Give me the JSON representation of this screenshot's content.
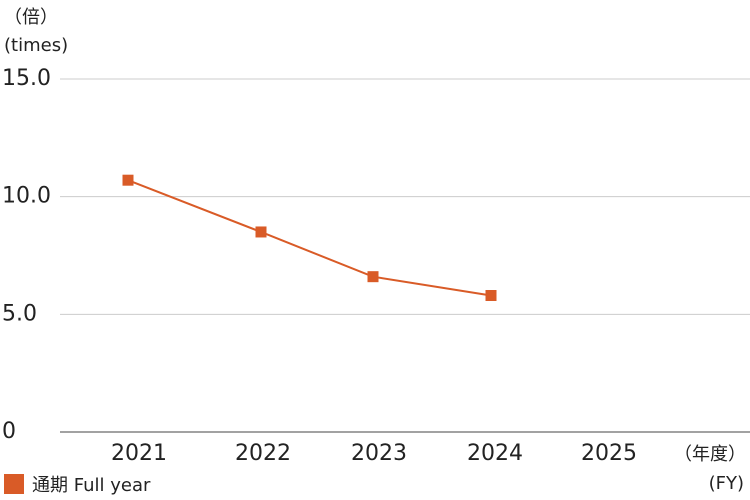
{
  "chart_data": {
    "type": "line",
    "y_unit_label": "（倍）",
    "y_unit_label_en": "(times)",
    "x_unit_label": "（年度）",
    "x_unit_label_en": "(FY)",
    "categories": [
      "2021",
      "2022",
      "2023",
      "2024",
      "2025"
    ],
    "series": [
      {
        "name": "通期 Full year",
        "color": "#d95b27",
        "values": [
          10.7,
          8.5,
          6.6,
          5.8,
          null
        ]
      }
    ],
    "ylim": [
      0,
      15
    ],
    "yticks": [
      0,
      {
        "value": 5,
        "label": "5.0"
      },
      {
        "value": 10,
        "label": "10.0"
      },
      {
        "value": 15,
        "label": "15.0"
      }
    ],
    "grid": true,
    "legend": "bottom-left"
  }
}
